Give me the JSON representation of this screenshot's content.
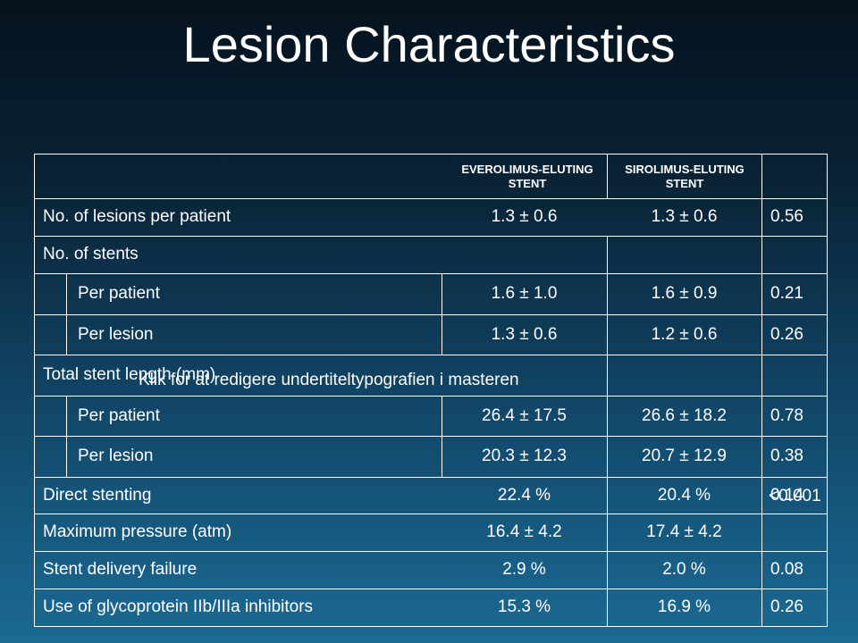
{
  "title": "Lesion Characteristics",
  "subtitle_placeholder": "Klik for at redigere undertiteltypografien i masteren",
  "table": {
    "headers": [
      "",
      "EVEROLIMUS-ELUTING STENT",
      "SIROLIMUS-ELUTING STENT",
      ""
    ],
    "rows": [
      {
        "label": "No. of lesions per patient",
        "everolimus": "1.3 ± 0.6",
        "sirolimus": "1.3 ± 0.6",
        "p": "0.56"
      },
      {
        "label": "No. of stents",
        "everolimus": "",
        "sirolimus": "",
        "p": ""
      },
      {
        "label": "Per patient",
        "everolimus": "1.6 ± 1.0",
        "sirolimus": "1.6 ± 0.9",
        "p": "0.21"
      },
      {
        "label": "Per lesion",
        "everolimus": "1.3 ± 0.6",
        "sirolimus": "1.2 ± 0.6",
        "p": "0.26"
      },
      {
        "label": "Total stent length (mm)",
        "everolimus": "",
        "sirolimus": "",
        "p": ""
      },
      {
        "label": "Per patient",
        "everolimus": "26.4 ± 17.5",
        "sirolimus": "26.6 ± 18.2",
        "p": "0.78"
      },
      {
        "label": "Per lesion",
        "everolimus": "20.3 ± 12.3",
        "sirolimus": "20.7 ± 12.9",
        "p": "0.38"
      },
      {
        "label": "Direct stenting",
        "everolimus": "22.4 %",
        "sirolimus": "20.4 %",
        "p": "0.14"
      },
      {
        "label": "Maximum pressure (atm)",
        "everolimus": "16.4 ± 4.2",
        "sirolimus": "17.4 ± 4.2",
        "p": ""
      },
      {
        "label": "Stent delivery failure",
        "everolimus": "2.9 %",
        "sirolimus": "2.0 %",
        "p": "0.08"
      },
      {
        "label": "Use of glycoprotein IIb/IIIa inhibitors",
        "everolimus": "15.3 %",
        "sirolimus": "16.9 %",
        "p": "0.26"
      }
    ],
    "overflow_pvalue": "<0.001"
  }
}
